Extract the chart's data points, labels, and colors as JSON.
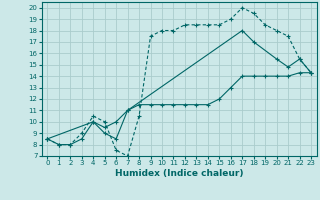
{
  "xlabel": "Humidex (Indice chaleur)",
  "background_color": "#cce8e8",
  "grid_color": "#aacccc",
  "line_color": "#006666",
  "xlim": [
    -0.5,
    23.5
  ],
  "ylim": [
    7,
    20.5
  ],
  "xticks": [
    0,
    1,
    2,
    3,
    4,
    5,
    6,
    7,
    8,
    9,
    10,
    11,
    12,
    13,
    14,
    15,
    16,
    17,
    18,
    19,
    20,
    21,
    22,
    23
  ],
  "yticks": [
    7,
    8,
    9,
    10,
    11,
    12,
    13,
    14,
    15,
    16,
    17,
    18,
    19,
    20
  ],
  "line1_x": [
    0,
    1,
    2,
    3,
    4,
    5,
    6,
    7,
    8,
    9,
    10,
    11,
    12,
    13,
    14,
    15,
    16,
    17,
    18,
    19,
    20,
    21,
    22,
    23
  ],
  "line1_y": [
    8.5,
    8.0,
    8.0,
    9.0,
    10.5,
    10.0,
    7.5,
    7.0,
    10.5,
    17.5,
    18.0,
    18.0,
    18.5,
    18.5,
    18.5,
    18.5,
    19.0,
    20.0,
    19.5,
    18.5,
    18.0,
    17.5,
    15.5,
    14.3
  ],
  "line2_x": [
    0,
    1,
    2,
    3,
    4,
    5,
    6,
    7,
    8,
    9,
    10,
    11,
    12,
    13,
    14,
    15,
    16,
    17,
    18,
    19,
    20,
    21,
    22,
    23
  ],
  "line2_y": [
    8.5,
    8.0,
    8.0,
    8.5,
    10.0,
    9.0,
    8.5,
    11.0,
    11.5,
    11.5,
    11.5,
    11.5,
    11.5,
    11.5,
    11.5,
    12.0,
    13.0,
    14.0,
    14.0,
    14.0,
    14.0,
    14.0,
    14.3,
    14.3
  ],
  "line3_x": [
    0,
    4,
    5,
    6,
    7,
    17,
    18,
    20,
    21,
    22,
    23
  ],
  "line3_y": [
    8.5,
    10.0,
    9.5,
    10.0,
    11.0,
    18.0,
    17.0,
    15.5,
    14.8,
    15.5,
    14.3
  ]
}
